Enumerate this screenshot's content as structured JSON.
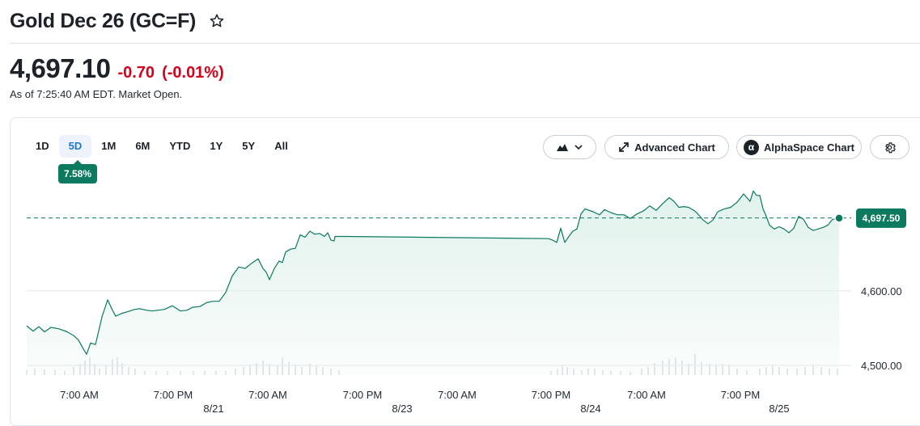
{
  "header": {
    "title": "Gold Dec 26 (GC=F)",
    "price": "4,697.10",
    "change": "-0.70",
    "change_pct": "(-0.01%)",
    "as_of": "As of 7:25:40 AM EDT. Market Open."
  },
  "ranges": [
    "1D",
    "5D",
    "1M",
    "6M",
    "YTD",
    "1Y",
    "5Y",
    "All"
  ],
  "active_range": "5D",
  "performance_badge": "7.58%",
  "toolbar": {
    "chart_type_icon": "mountain-icon",
    "advanced_chart_label": "Advanced Chart",
    "alphaspace_chart_label": "AlphaSpace Chart",
    "alphaspace_logo": "α",
    "settings_icon": "gear-icon"
  },
  "colors": {
    "line": "#0b7a5e",
    "fill": "#dff1ea",
    "badge": "#0b7a5e",
    "negative": "#d6001c",
    "active_tab": "#1e77d2"
  },
  "chart_data": {
    "type": "area",
    "title": "",
    "xlabel": "",
    "ylabel": "",
    "ylim": [
      4487,
      4744
    ],
    "y_ticks": [
      4600,
      4500
    ],
    "y_tick_labels": [
      "4,600.00",
      "4,500.00"
    ],
    "reference_price": 4697.8,
    "last_value": 4697.5,
    "last_value_label": "4,697.50",
    "x_tick_labels": [
      "7:00 AM",
      "7:00 PM",
      "7:00 AM",
      "7:00 PM",
      "7:00 AM",
      "7:00 PM",
      "7:00 AM",
      "7:00 PM"
    ],
    "x_date_labels": [
      "8/21",
      "8/23",
      "8/24",
      "8/25"
    ],
    "grid": true,
    "series": [
      {
        "points": [
          [
            0,
            4553
          ],
          [
            8,
            4546
          ],
          [
            15,
            4552
          ],
          [
            22,
            4545
          ],
          [
            30,
            4551
          ],
          [
            40,
            4549
          ],
          [
            50,
            4545
          ],
          [
            58,
            4540
          ],
          [
            64,
            4534
          ],
          [
            70,
            4522
          ],
          [
            74,
            4515
          ],
          [
            79,
            4530
          ],
          [
            85,
            4528
          ],
          [
            93,
            4565
          ],
          [
            100,
            4588
          ],
          [
            106,
            4574
          ],
          [
            110,
            4566
          ],
          [
            118,
            4570
          ],
          [
            125,
            4572
          ],
          [
            133,
            4575
          ],
          [
            140,
            4576
          ],
          [
            148,
            4574
          ],
          [
            155,
            4573
          ],
          [
            162,
            4574
          ],
          [
            170,
            4575
          ],
          [
            180,
            4580
          ],
          [
            190,
            4573
          ],
          [
            198,
            4574
          ],
          [
            205,
            4578
          ],
          [
            214,
            4579
          ],
          [
            222,
            4584
          ],
          [
            230,
            4586
          ],
          [
            238,
            4586
          ],
          [
            246,
            4598
          ],
          [
            254,
            4620
          ],
          [
            262,
            4632
          ],
          [
            270,
            4630
          ],
          [
            278,
            4637
          ],
          [
            286,
            4643
          ],
          [
            292,
            4630
          ],
          [
            296,
            4625
          ],
          [
            300,
            4615
          ],
          [
            306,
            4630
          ],
          [
            312,
            4640
          ],
          [
            316,
            4638
          ],
          [
            320,
            4652
          ],
          [
            326,
            4656
          ],
          [
            332,
            4657
          ],
          [
            338,
            4675
          ],
          [
            344,
            4672
          ],
          [
            350,
            4680
          ],
          [
            356,
            4676
          ],
          [
            362,
            4677
          ],
          [
            368,
            4673
          ],
          [
            372,
            4678
          ],
          [
            376,
            4668
          ],
          [
            380,
            4667
          ],
          [
            381,
            4673
          ],
          [
            394,
            4673
          ],
          [
            395,
            4673
          ],
          [
            645,
            4670
          ],
          [
            650,
            4668
          ],
          [
            655,
            4665
          ],
          [
            660,
            4684
          ],
          [
            665,
            4665
          ],
          [
            670,
            4673
          ],
          [
            675,
            4680
          ],
          [
            680,
            4683
          ],
          [
            685,
            4703
          ],
          [
            690,
            4710
          ],
          [
            700,
            4706
          ],
          [
            708,
            4702
          ],
          [
            714,
            4709
          ],
          [
            722,
            4705
          ],
          [
            730,
            4702
          ],
          [
            738,
            4702
          ],
          [
            746,
            4697
          ],
          [
            754,
            4703
          ],
          [
            762,
            4707
          ],
          [
            770,
            4714
          ],
          [
            778,
            4708
          ],
          [
            786,
            4717
          ],
          [
            794,
            4725
          ],
          [
            800,
            4720
          ],
          [
            806,
            4712
          ],
          [
            812,
            4713
          ],
          [
            818,
            4712
          ],
          [
            826,
            4707
          ],
          [
            832,
            4700
          ],
          [
            836,
            4695
          ],
          [
            842,
            4690
          ],
          [
            848,
            4695
          ],
          [
            854,
            4706
          ],
          [
            862,
            4710
          ],
          [
            870,
            4712
          ],
          [
            878,
            4719
          ],
          [
            886,
            4730
          ],
          [
            890,
            4725
          ],
          [
            894,
            4720
          ],
          [
            898,
            4734
          ],
          [
            902,
            4728
          ],
          [
            906,
            4728
          ],
          [
            910,
            4710
          ],
          [
            914,
            4700
          ],
          [
            918,
            4688
          ],
          [
            924,
            4683
          ],
          [
            930,
            4686
          ],
          [
            936,
            4683
          ],
          [
            942,
            4678
          ],
          [
            948,
            4684
          ],
          [
            954,
            4700
          ],
          [
            960,
            4696
          ],
          [
            966,
            4685
          ],
          [
            972,
            4681
          ],
          [
            978,
            4683
          ],
          [
            984,
            4685
          ],
          [
            990,
            4688
          ],
          [
            996,
            4696
          ],
          [
            1004,
            4697.5
          ]
        ]
      }
    ],
    "volume_bars": [
      [
        0,
        6
      ],
      [
        10,
        8
      ],
      [
        22,
        7
      ],
      [
        35,
        6
      ],
      [
        47,
        5
      ],
      [
        58,
        10
      ],
      [
        66,
        14
      ],
      [
        72,
        18
      ],
      [
        78,
        22
      ],
      [
        84,
        14
      ],
      [
        90,
        8
      ],
      [
        98,
        12
      ],
      [
        106,
        20
      ],
      [
        112,
        22
      ],
      [
        118,
        15
      ],
      [
        126,
        10
      ],
      [
        134,
        8
      ],
      [
        146,
        5
      ],
      [
        160,
        5
      ],
      [
        174,
        5
      ],
      [
        190,
        5
      ],
      [
        206,
        5
      ],
      [
        220,
        5
      ],
      [
        234,
        5
      ],
      [
        246,
        5
      ],
      [
        258,
        8
      ],
      [
        268,
        10
      ],
      [
        276,
        13
      ],
      [
        284,
        15
      ],
      [
        292,
        18
      ],
      [
        300,
        14
      ],
      [
        310,
        12
      ],
      [
        316,
        22
      ],
      [
        324,
        16
      ],
      [
        332,
        12
      ],
      [
        340,
        10
      ],
      [
        350,
        14
      ],
      [
        358,
        12
      ],
      [
        366,
        10
      ],
      [
        376,
        8
      ],
      [
        386,
        6
      ],
      [
        648,
        5
      ],
      [
        656,
        8
      ],
      [
        662,
        12
      ],
      [
        668,
        10
      ],
      [
        676,
        8
      ],
      [
        686,
        6
      ],
      [
        694,
        8
      ],
      [
        702,
        8
      ],
      [
        712,
        6
      ],
      [
        722,
        5
      ],
      [
        734,
        5
      ],
      [
        746,
        4
      ],
      [
        760,
        8
      ],
      [
        768,
        10
      ],
      [
        776,
        15
      ],
      [
        786,
        18
      ],
      [
        794,
        20
      ],
      [
        802,
        22
      ],
      [
        810,
        18
      ],
      [
        818,
        14
      ],
      [
        826,
        26
      ],
      [
        834,
        16
      ],
      [
        844,
        14
      ],
      [
        852,
        12
      ],
      [
        860,
        14
      ],
      [
        868,
        12
      ],
      [
        878,
        8
      ],
      [
        890,
        6
      ],
      [
        906,
        8
      ],
      [
        914,
        10
      ],
      [
        922,
        12
      ],
      [
        930,
        10
      ],
      [
        940,
        8
      ],
      [
        952,
        8
      ],
      [
        962,
        10
      ],
      [
        972,
        12
      ],
      [
        982,
        10
      ],
      [
        992,
        8
      ],
      [
        1002,
        8
      ]
    ]
  }
}
